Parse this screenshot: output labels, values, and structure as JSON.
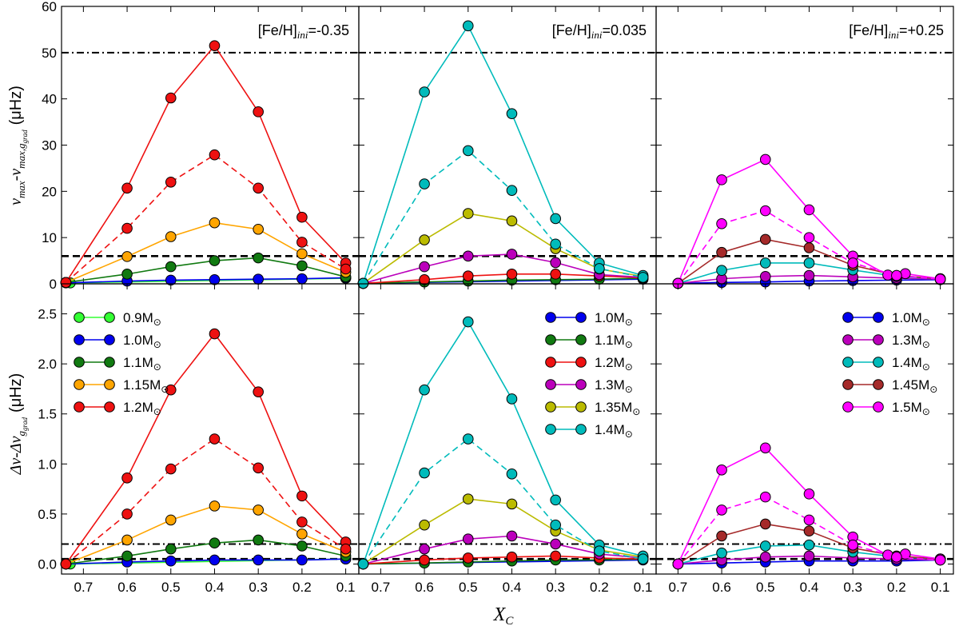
{
  "figure": {
    "xlabel": "X",
    "xlabel_sub": "C",
    "ylabel_top": "νmax-νmax,ggrad (μHz)",
    "ylabel_top_parts": {
      "a": "ν",
      "b": "max",
      "c": "-ν",
      "d": "max,g",
      "e": "grad",
      "f": "(μHz)"
    },
    "ylabel_bottom": "Δν-Δνggrad (μHz)",
    "ylabel_bottom_parts": {
      "a": "Δν-Δν",
      "b": "g",
      "c": "grad",
      "f": "(μHz)"
    },
    "sun_symbol": "⊙"
  },
  "chart_data": [
    {
      "type": "line",
      "panel": "top-left",
      "title": "[Fe/H]ini=-0.35",
      "title_parts": {
        "a": "[Fe/H]",
        "b": "ini",
        "c": "=-0.35"
      },
      "ylim": [
        0,
        60
      ],
      "yticks": [
        0,
        10,
        20,
        30,
        40,
        50,
        60
      ],
      "ytick_labels": [
        "0",
        "10",
        "20",
        "30",
        "40",
        "50",
        "60"
      ],
      "xlim": [
        0.75,
        0.07
      ],
      "xticks": [
        0.7,
        0.6,
        0.5,
        0.4,
        0.3,
        0.2,
        0.1
      ],
      "hlines": [
        {
          "y": 50,
          "style": "dashdot"
        },
        {
          "y": 6,
          "style": "dashed"
        }
      ],
      "series": [
        {
          "name": "0.9M",
          "color": "#33ff33",
          "dashed": false,
          "x": [
            0.73,
            0.1
          ],
          "y": [
            0.2,
            1.2
          ]
        },
        {
          "name": "1.0M",
          "color": "#0000ee",
          "dashed": false,
          "x": [
            0.74,
            0.6,
            0.5,
            0.4,
            0.3,
            0.2,
            0.1
          ],
          "y": [
            0.2,
            0.6,
            0.8,
            0.9,
            1.0,
            1.1,
            1.3
          ]
        },
        {
          "name": "1.1M",
          "color": "#117a11",
          "dashed": false,
          "x": [
            0.74,
            0.6,
            0.5,
            0.4,
            0.3,
            0.2,
            0.1
          ],
          "y": [
            0.3,
            2.1,
            3.7,
            5.0,
            5.6,
            3.9,
            1.5
          ]
        },
        {
          "name": "1.15M",
          "color": "#ffa500",
          "dashed": false,
          "x": [
            0.74,
            0.6,
            0.5,
            0.4,
            0.3,
            0.2,
            0.1
          ],
          "y": [
            0.3,
            5.9,
            10.2,
            13.2,
            11.8,
            6.5,
            2.5
          ]
        },
        {
          "name": "1.2M",
          "color": "#ee1111",
          "dashed": false,
          "x": [
            0.74,
            0.6,
            0.5,
            0.4,
            0.3,
            0.2,
            0.1
          ],
          "y": [
            0.3,
            20.7,
            40.2,
            51.5,
            37.2,
            14.4,
            4.5
          ]
        },
        {
          "name": "",
          "color": "#ee1111",
          "dashed": true,
          "x": [
            0.74,
            0.6,
            0.5,
            0.4,
            0.3,
            0.2,
            0.1
          ],
          "y": [
            0.3,
            12.0,
            22.0,
            27.9,
            20.7,
            9.0,
            3.2
          ]
        }
      ]
    },
    {
      "type": "line",
      "panel": "top-middle",
      "title": "[Fe/H]ini=0.035",
      "title_parts": {
        "a": "[Fe/H]",
        "b": "ini",
        "c": "=0.035"
      },
      "ylim": [
        0,
        60
      ],
      "yticks": [
        0,
        10,
        20,
        30,
        40,
        50,
        60
      ],
      "ytick_labels": [],
      "xlim": [
        0.75,
        0.07
      ],
      "xticks": [
        0.7,
        0.6,
        0.5,
        0.4,
        0.3,
        0.2,
        0.1
      ],
      "hlines": [
        {
          "y": 50,
          "style": "dashdot"
        },
        {
          "y": 6,
          "style": "dashed"
        }
      ],
      "series": [
        {
          "name": "1.0M",
          "color": "#0000ee",
          "dashed": false,
          "x": [
            0.74,
            0.1
          ],
          "y": [
            0.1,
            1.0
          ]
        },
        {
          "name": "1.1M",
          "color": "#117a11",
          "dashed": false,
          "x": [
            0.74,
            0.6,
            0.5,
            0.4,
            0.3,
            0.2,
            0.1
          ],
          "y": [
            0.1,
            0.4,
            0.6,
            0.8,
            0.9,
            1.0,
            1.2
          ]
        },
        {
          "name": "1.2M",
          "color": "#ee1111",
          "dashed": false,
          "x": [
            0.74,
            0.6,
            0.5,
            0.4,
            0.3,
            0.2,
            0.1
          ],
          "y": [
            0.1,
            0.9,
            1.7,
            2.1,
            2.1,
            1.7,
            1.3
          ]
        },
        {
          "name": "1.3M",
          "color": "#bb00bb",
          "dashed": false,
          "x": [
            0.74,
            0.6,
            0.5,
            0.4,
            0.3,
            0.2,
            0.1
          ],
          "y": [
            0.1,
            3.7,
            6.0,
            6.4,
            4.6,
            2.0,
            1.4
          ]
        },
        {
          "name": "1.35M",
          "color": "#bbbb00",
          "dashed": false,
          "x": [
            0.74,
            0.6,
            0.5,
            0.4,
            0.3,
            0.2,
            0.1
          ],
          "y": [
            0.1,
            9.5,
            15.2,
            13.6,
            7.6,
            3.2,
            1.6
          ]
        },
        {
          "name": "1.4M",
          "color": "#00bbbb",
          "dashed": false,
          "x": [
            0.74,
            0.6,
            0.5,
            0.4,
            0.3,
            0.2,
            0.1
          ],
          "y": [
            0.1,
            41.5,
            55.8,
            36.8,
            14.1,
            4.5,
            1.8
          ]
        },
        {
          "name": "",
          "color": "#00bbbb",
          "dashed": true,
          "x": [
            0.74,
            0.6,
            0.5,
            0.4,
            0.3,
            0.2,
            0.1
          ],
          "y": [
            0.1,
            21.6,
            28.8,
            20.2,
            8.6,
            3.3,
            1.4
          ]
        }
      ]
    },
    {
      "type": "line",
      "panel": "top-right",
      "title": "[Fe/H]ini=+0.25",
      "title_parts": {
        "a": "[Fe/H]",
        "b": "ini",
        "c": "=+0.25"
      },
      "ylim": [
        0,
        60
      ],
      "yticks": [
        0,
        10,
        20,
        30,
        40,
        50,
        60
      ],
      "ytick_labels": [],
      "xlim": [
        0.75,
        0.07
      ],
      "xticks": [
        0.7,
        0.6,
        0.5,
        0.4,
        0.3,
        0.2,
        0.1
      ],
      "hlines": [
        {
          "y": 50,
          "style": "dashdot"
        },
        {
          "y": 6,
          "style": "dashed"
        }
      ],
      "series": [
        {
          "name": "1.0M",
          "color": "#0000ee",
          "dashed": false,
          "x": [
            0.7,
            0.6,
            0.5,
            0.4,
            0.3,
            0.2,
            0.1
          ],
          "y": [
            0.1,
            0.3,
            0.4,
            0.6,
            0.7,
            0.8,
            0.9
          ]
        },
        {
          "name": "1.3M",
          "color": "#bb00bb",
          "dashed": false,
          "x": [
            0.7,
            0.6,
            0.5,
            0.4,
            0.3,
            0.2,
            0.1
          ],
          "y": [
            0.1,
            1.1,
            1.6,
            1.8,
            1.5,
            1.2,
            1.0
          ]
        },
        {
          "name": "1.4M",
          "color": "#00bbbb",
          "dashed": false,
          "x": [
            0.7,
            0.6,
            0.5,
            0.4,
            0.3,
            0.2,
            0.1
          ],
          "y": [
            0.1,
            2.9,
            4.5,
            4.5,
            3.0,
            1.6,
            1.1
          ]
        },
        {
          "name": "1.45M",
          "color": "#a52a2a",
          "dashed": false,
          "x": [
            0.7,
            0.6,
            0.5,
            0.4,
            0.3,
            0.2,
            0.1
          ],
          "y": [
            0.1,
            6.8,
            9.6,
            7.8,
            4.0,
            1.8,
            1.1
          ]
        },
        {
          "name": "1.5M",
          "color": "#ff00ff",
          "dashed": false,
          "x": [
            0.7,
            0.6,
            0.5,
            0.4,
            0.3,
            0.22,
            0.18,
            0.1
          ],
          "y": [
            0.1,
            22.5,
            26.9,
            16.0,
            6.0,
            1.9,
            2.2,
            1.1
          ]
        },
        {
          "name": "",
          "color": "#ff00ff",
          "dashed": true,
          "x": [
            0.7,
            0.6,
            0.5,
            0.4,
            0.3,
            0.2,
            0.1
          ],
          "y": [
            0.1,
            13.0,
            15.8,
            10.0,
            4.5,
            1.8,
            1.0
          ]
        }
      ]
    },
    {
      "type": "line",
      "panel": "bottom-left",
      "title": "",
      "ylim": [
        -0.1,
        2.8
      ],
      "yticks": [
        0.0,
        0.5,
        1.0,
        1.5,
        2.0,
        2.5
      ],
      "ytick_labels": [
        "0.0",
        "0.5",
        "1.0",
        "1.5",
        "2.0",
        "2.5"
      ],
      "xlim": [
        0.75,
        0.07
      ],
      "xticks": [
        0.7,
        0.6,
        0.5,
        0.4,
        0.3,
        0.2,
        0.1
      ],
      "xtick_labels": [
        "0.7",
        "0.6",
        "0.5",
        "0.4",
        "0.3",
        "0.2",
        "0.1"
      ],
      "hlines": [
        {
          "y": 0.2,
          "style": "dashdot"
        },
        {
          "y": 0.05,
          "style": "dashed"
        }
      ],
      "legend": "top-left",
      "series": [
        {
          "name": "0.9M",
          "color": "#33ff33",
          "dashed": false,
          "x": [
            0.73,
            0.1
          ],
          "y": [
            0.0,
            0.05
          ]
        },
        {
          "name": "1.0M",
          "color": "#0000ee",
          "dashed": false,
          "x": [
            0.74,
            0.6,
            0.5,
            0.4,
            0.3,
            0.2,
            0.1
          ],
          "y": [
            0.0,
            0.02,
            0.03,
            0.04,
            0.04,
            0.04,
            0.05
          ]
        },
        {
          "name": "1.1M",
          "color": "#117a11",
          "dashed": false,
          "x": [
            0.74,
            0.6,
            0.5,
            0.4,
            0.3,
            0.2,
            0.1
          ],
          "y": [
            0.0,
            0.08,
            0.15,
            0.21,
            0.24,
            0.18,
            0.08
          ]
        },
        {
          "name": "1.15M",
          "color": "#ffa500",
          "dashed": false,
          "x": [
            0.74,
            0.6,
            0.5,
            0.4,
            0.3,
            0.2,
            0.1
          ],
          "y": [
            0.0,
            0.24,
            0.44,
            0.58,
            0.54,
            0.3,
            0.12
          ]
        },
        {
          "name": "1.2M",
          "color": "#ee1111",
          "dashed": false,
          "x": [
            0.74,
            0.6,
            0.5,
            0.4,
            0.3,
            0.2,
            0.1
          ],
          "y": [
            0.0,
            0.86,
            1.74,
            2.3,
            1.72,
            0.68,
            0.22
          ]
        },
        {
          "name": "",
          "color": "#ee1111",
          "dashed": true,
          "x": [
            0.74,
            0.6,
            0.5,
            0.4,
            0.3,
            0.2,
            0.1
          ],
          "y": [
            0.0,
            0.5,
            0.95,
            1.25,
            0.96,
            0.42,
            0.15
          ]
        }
      ]
    },
    {
      "type": "line",
      "panel": "bottom-middle",
      "title": "",
      "ylim": [
        -0.1,
        2.8
      ],
      "yticks": [
        0.0,
        0.5,
        1.0,
        1.5,
        2.0,
        2.5
      ],
      "ytick_labels": [],
      "xlim": [
        0.75,
        0.07
      ],
      "xticks": [
        0.7,
        0.6,
        0.5,
        0.4,
        0.3,
        0.2,
        0.1
      ],
      "xtick_labels": [
        "0.7",
        "0.6",
        "0.5",
        "0.4",
        "0.3",
        "0.2",
        "0.1"
      ],
      "hlines": [
        {
          "y": 0.2,
          "style": "dashdot"
        },
        {
          "y": 0.05,
          "style": "dashed"
        }
      ],
      "legend": "top-right",
      "series": [
        {
          "name": "1.0M",
          "color": "#0000ee",
          "dashed": false,
          "x": [
            0.74,
            0.1
          ],
          "y": [
            0.0,
            0.04
          ]
        },
        {
          "name": "1.1M",
          "color": "#117a11",
          "dashed": false,
          "x": [
            0.74,
            0.6,
            0.5,
            0.4,
            0.3,
            0.2,
            0.1
          ],
          "y": [
            0.0,
            0.01,
            0.02,
            0.03,
            0.04,
            0.04,
            0.05
          ]
        },
        {
          "name": "1.2M",
          "color": "#ee1111",
          "dashed": false,
          "x": [
            0.74,
            0.6,
            0.5,
            0.4,
            0.3,
            0.2,
            0.1
          ],
          "y": [
            0.0,
            0.04,
            0.06,
            0.07,
            0.08,
            0.06,
            0.05
          ]
        },
        {
          "name": "1.3M",
          "color": "#bb00bb",
          "dashed": false,
          "x": [
            0.74,
            0.6,
            0.5,
            0.4,
            0.3,
            0.2,
            0.1
          ],
          "y": [
            0.0,
            0.15,
            0.25,
            0.28,
            0.2,
            0.1,
            0.06
          ]
        },
        {
          "name": "1.35M",
          "color": "#bbbb00",
          "dashed": false,
          "x": [
            0.74,
            0.6,
            0.5,
            0.4,
            0.3,
            0.2,
            0.1
          ],
          "y": [
            0.0,
            0.39,
            0.65,
            0.6,
            0.33,
            0.14,
            0.07
          ]
        },
        {
          "name": "1.4M",
          "color": "#00bbbb",
          "dashed": false,
          "x": [
            0.74,
            0.6,
            0.5,
            0.4,
            0.3,
            0.2,
            0.1
          ],
          "y": [
            0.0,
            1.74,
            2.42,
            1.65,
            0.64,
            0.19,
            0.08
          ]
        },
        {
          "name": "",
          "color": "#00bbbb",
          "dashed": true,
          "x": [
            0.74,
            0.6,
            0.5,
            0.4,
            0.3,
            0.2,
            0.1
          ],
          "y": [
            0.0,
            0.91,
            1.25,
            0.9,
            0.39,
            0.13,
            0.05
          ]
        }
      ]
    },
    {
      "type": "line",
      "panel": "bottom-right",
      "title": "",
      "ylim": [
        -0.1,
        2.8
      ],
      "yticks": [
        0.0,
        0.5,
        1.0,
        1.5,
        2.0,
        2.5
      ],
      "ytick_labels": [],
      "xlim": [
        0.75,
        0.07
      ],
      "xticks": [
        0.7,
        0.6,
        0.5,
        0.4,
        0.3,
        0.2,
        0.1
      ],
      "xtick_labels": [
        "0.7",
        "0.6",
        "0.5",
        "0.4",
        "0.3",
        "0.2",
        "0.1"
      ],
      "hlines": [
        {
          "y": 0.2,
          "style": "dashdot"
        },
        {
          "y": 0.05,
          "style": "dashed"
        }
      ],
      "legend": "top-right",
      "series": [
        {
          "name": "1.0M",
          "color": "#0000ee",
          "dashed": false,
          "x": [
            0.7,
            0.6,
            0.5,
            0.4,
            0.3,
            0.2,
            0.1
          ],
          "y": [
            0.0,
            0.01,
            0.02,
            0.03,
            0.03,
            0.03,
            0.04
          ]
        },
        {
          "name": "1.3M",
          "color": "#bb00bb",
          "dashed": false,
          "x": [
            0.7,
            0.6,
            0.5,
            0.4,
            0.3,
            0.2,
            0.1
          ],
          "y": [
            0.0,
            0.04,
            0.07,
            0.08,
            0.06,
            0.05,
            0.04
          ]
        },
        {
          "name": "1.4M",
          "color": "#00bbbb",
          "dashed": false,
          "x": [
            0.7,
            0.6,
            0.5,
            0.4,
            0.3,
            0.2,
            0.1
          ],
          "y": [
            0.0,
            0.11,
            0.18,
            0.19,
            0.12,
            0.07,
            0.05
          ]
        },
        {
          "name": "1.45M",
          "color": "#a52a2a",
          "dashed": false,
          "x": [
            0.7,
            0.6,
            0.5,
            0.4,
            0.3,
            0.2,
            0.1
          ],
          "y": [
            0.0,
            0.28,
            0.4,
            0.33,
            0.16,
            0.08,
            0.05
          ]
        },
        {
          "name": "1.5M",
          "color": "#ff00ff",
          "dashed": false,
          "x": [
            0.7,
            0.6,
            0.5,
            0.4,
            0.3,
            0.22,
            0.18,
            0.1
          ],
          "y": [
            0.0,
            0.94,
            1.16,
            0.7,
            0.27,
            0.09,
            0.1,
            0.05
          ]
        },
        {
          "name": "",
          "color": "#ff00ff",
          "dashed": true,
          "x": [
            0.7,
            0.6,
            0.5,
            0.4,
            0.3,
            0.2,
            0.1
          ],
          "y": [
            0.0,
            0.54,
            0.67,
            0.44,
            0.19,
            0.07,
            0.04
          ]
        }
      ]
    }
  ]
}
